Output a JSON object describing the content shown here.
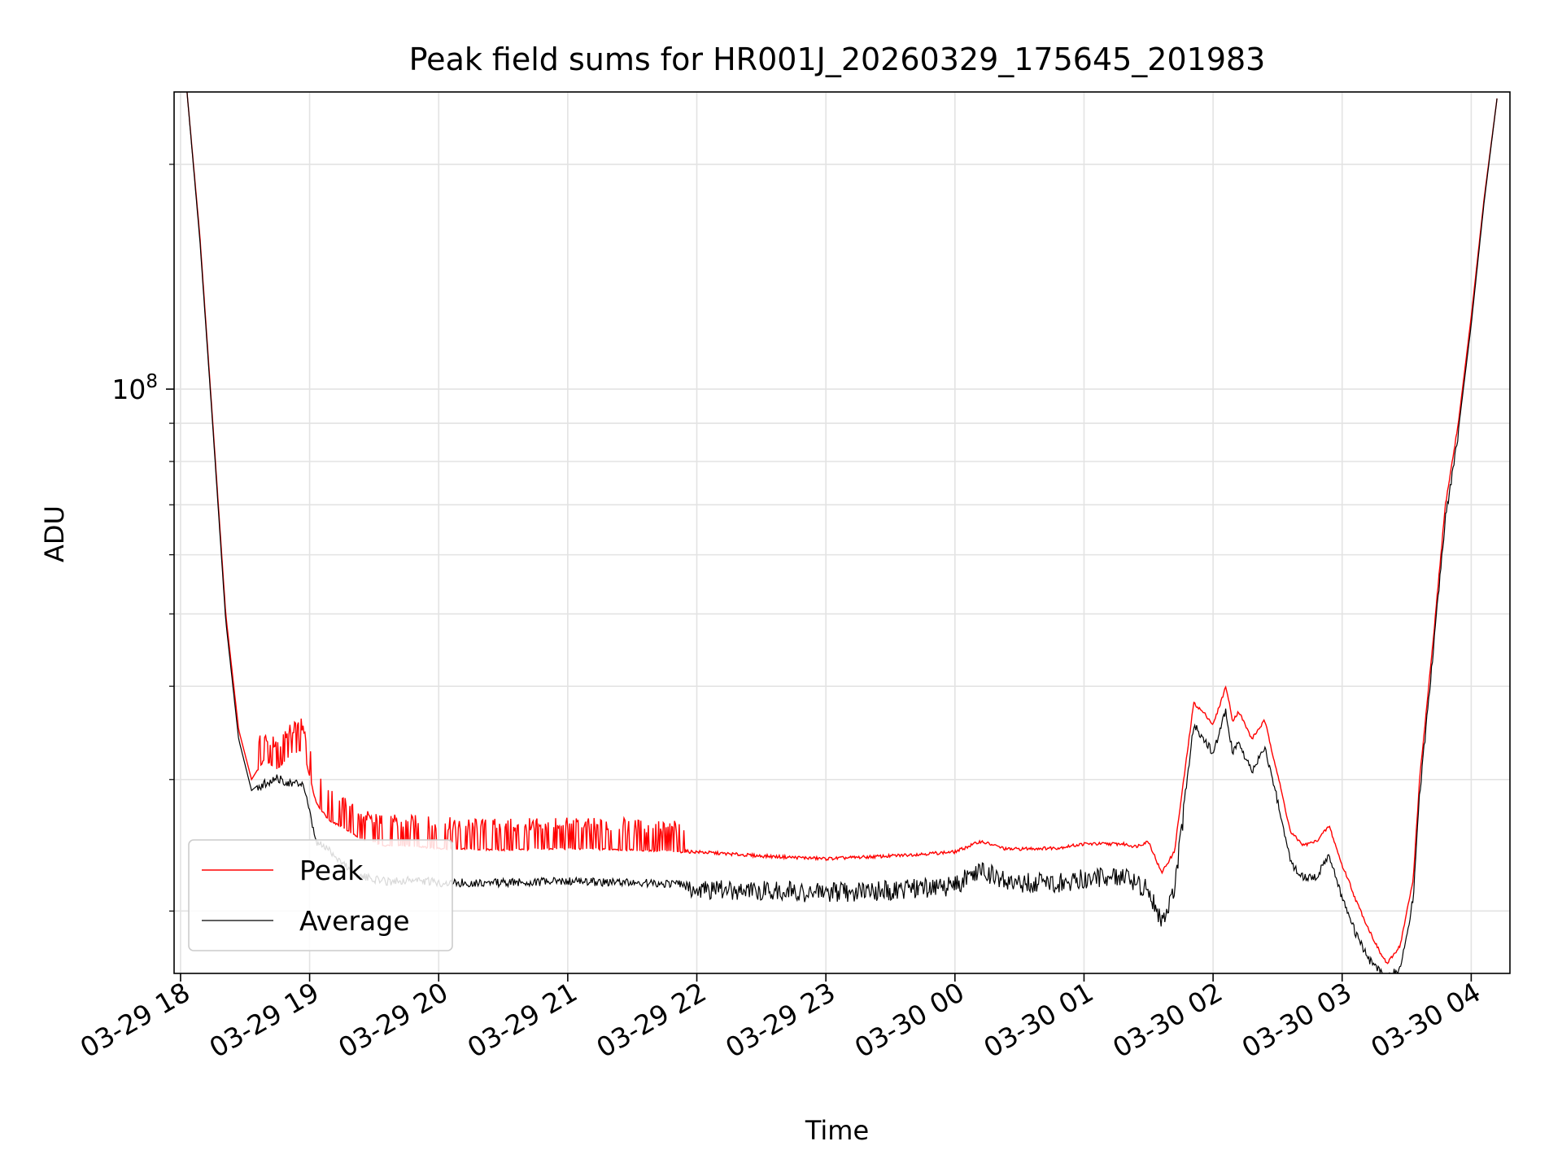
{
  "chart_data": {
    "type": "line",
    "title": "Peak field sums for HR001J_20260329_175645_201983",
    "xlabel": "Time",
    "ylabel": "ADU",
    "yscale": "log",
    "ylim": [
      16500000,
      250000000
    ],
    "xlim_hours": [
      -0.05,
      10.3
    ],
    "x_unit": "hours since 03-29 18:00",
    "grid": true,
    "legend_position": "lower-left",
    "x_ticks": [
      {
        "hour": 0,
        "label": "03-29 18"
      },
      {
        "hour": 1,
        "label": "03-29 19"
      },
      {
        "hour": 2,
        "label": "03-29 20"
      },
      {
        "hour": 3,
        "label": "03-29 21"
      },
      {
        "hour": 4,
        "label": "03-29 22"
      },
      {
        "hour": 5,
        "label": "03-29 23"
      },
      {
        "hour": 6,
        "label": "03-30 00"
      },
      {
        "hour": 7,
        "label": "03-30 01"
      },
      {
        "hour": 8,
        "label": "03-30 02"
      },
      {
        "hour": 9,
        "label": "03-30 03"
      },
      {
        "hour": 10,
        "label": "03-30 04"
      }
    ],
    "y_major_tick": {
      "value": 100000000,
      "label_base": "10",
      "label_exp": "8"
    },
    "y_minor_ticks": [
      20000000,
      30000000,
      40000000,
      50000000,
      60000000,
      70000000,
      80000000,
      90000000,
      200000000
    ],
    "series": [
      {
        "name": "Peak",
        "color": "#ff0000",
        "x": [
          0.05,
          0.15,
          0.25,
          0.35,
          0.45,
          0.55,
          0.65,
          0.75,
          0.85,
          0.95,
          1.05,
          1.15,
          1.25,
          1.4,
          1.6,
          1.8,
          2.0,
          2.5,
          3.0,
          3.5,
          4.0,
          4.5,
          5.0,
          5.5,
          6.0,
          6.2,
          6.4,
          6.8,
          7.0,
          7.3,
          7.4,
          7.5,
          7.6,
          7.7,
          7.85,
          7.95,
          8.0,
          8.1,
          8.15,
          8.2,
          8.3,
          8.4,
          8.5,
          8.6,
          8.7,
          8.8,
          8.9,
          9.0,
          9.05,
          9.1,
          9.2,
          9.3,
          9.35,
          9.45,
          9.55,
          9.6,
          9.7,
          9.8,
          9.9,
          10.0,
          10.1,
          10.2
        ],
        "y": [
          250000000,
          160000000,
          90000000,
          50000000,
          35000000,
          30000000,
          32000000,
          31000000,
          32500000,
          33000000,
          28000000,
          26500000,
          26000000,
          25000000,
          24500000,
          24500000,
          24300000,
          24200000,
          24300000,
          24200000,
          24000000,
          23700000,
          23500000,
          23700000,
          24000000,
          24800000,
          24200000,
          24300000,
          24600000,
          24600000,
          24400000,
          24800000,
          22500000,
          24000000,
          38000000,
          36500000,
          35500000,
          40000000,
          36000000,
          37000000,
          34000000,
          36000000,
          30500000,
          25500000,
          24500000,
          24800000,
          26000000,
          23000000,
          22000000,
          20800000,
          19000000,
          17500000,
          17000000,
          18000000,
          22000000,
          30000000,
          45000000,
          70000000,
          90000000,
          125000000,
          180000000,
          245000000
        ]
      },
      {
        "name": "Average",
        "color": "#000000",
        "x": [
          0.05,
          0.15,
          0.25,
          0.35,
          0.45,
          0.55,
          0.65,
          0.75,
          0.85,
          0.95,
          1.05,
          1.15,
          1.25,
          1.4,
          1.6,
          1.8,
          2.0,
          2.5,
          3.0,
          3.5,
          4.0,
          4.5,
          5.0,
          5.5,
          6.0,
          6.2,
          6.4,
          6.8,
          7.0,
          7.3,
          7.4,
          7.5,
          7.6,
          7.7,
          7.85,
          7.95,
          8.0,
          8.1,
          8.15,
          8.2,
          8.3,
          8.4,
          8.5,
          8.6,
          8.7,
          8.8,
          8.9,
          9.0,
          9.05,
          9.1,
          9.2,
          9.3,
          9.35,
          9.45,
          9.55,
          9.6,
          9.7,
          9.8,
          9.9,
          10.0,
          10.1,
          10.2
        ],
        "y": [
          250000000,
          158000000,
          89000000,
          49000000,
          34000000,
          29000000,
          30000000,
          30500000,
          30000000,
          30000000,
          25000000,
          24500000,
          23500000,
          22500000,
          22200000,
          22300000,
          22100000,
          22100000,
          22200000,
          22100000,
          22000000,
          22000000,
          21800000,
          22000000,
          22300000,
          23500000,
          22500000,
          22500000,
          22800000,
          23000000,
          22500000,
          22000000,
          20000000,
          22000000,
          36000000,
          34000000,
          33000000,
          37500000,
          33000000,
          34000000,
          31000000,
          33500000,
          28500000,
          23500000,
          22500000,
          22500000,
          24000000,
          21000000,
          20000000,
          19000000,
          17500000,
          16800000,
          16500000,
          17000000,
          21000000,
          29000000,
          44000000,
          68000000,
          88000000,
          122000000,
          178000000,
          245000000
        ]
      }
    ]
  }
}
